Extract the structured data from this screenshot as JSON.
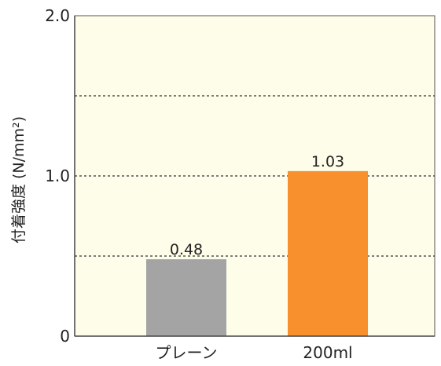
{
  "chart_data": {
    "type": "bar",
    "title": "",
    "xlabel": "",
    "ylabel": "付着強度 (N/mm²)",
    "categories": [
      "プレーン",
      "200ml"
    ],
    "values": [
      0.48,
      1.03
    ],
    "value_labels": [
      "0.48",
      "1.03"
    ],
    "ylim": [
      0,
      2.0
    ],
    "y_ticks": [
      0,
      1.0,
      2.0
    ],
    "y_tick_labels": [
      "0",
      "1.0",
      "2.0"
    ],
    "gridlines": [
      0.5,
      1.0,
      1.5
    ],
    "grid": true,
    "grid_style": "dashed",
    "colors": {
      "plot_background": "#fdfde9",
      "bar_colors": [
        "#a4a4a4",
        "#f7902d"
      ],
      "grid": "#333333",
      "axis": "#444444",
      "text": "#222222"
    }
  }
}
